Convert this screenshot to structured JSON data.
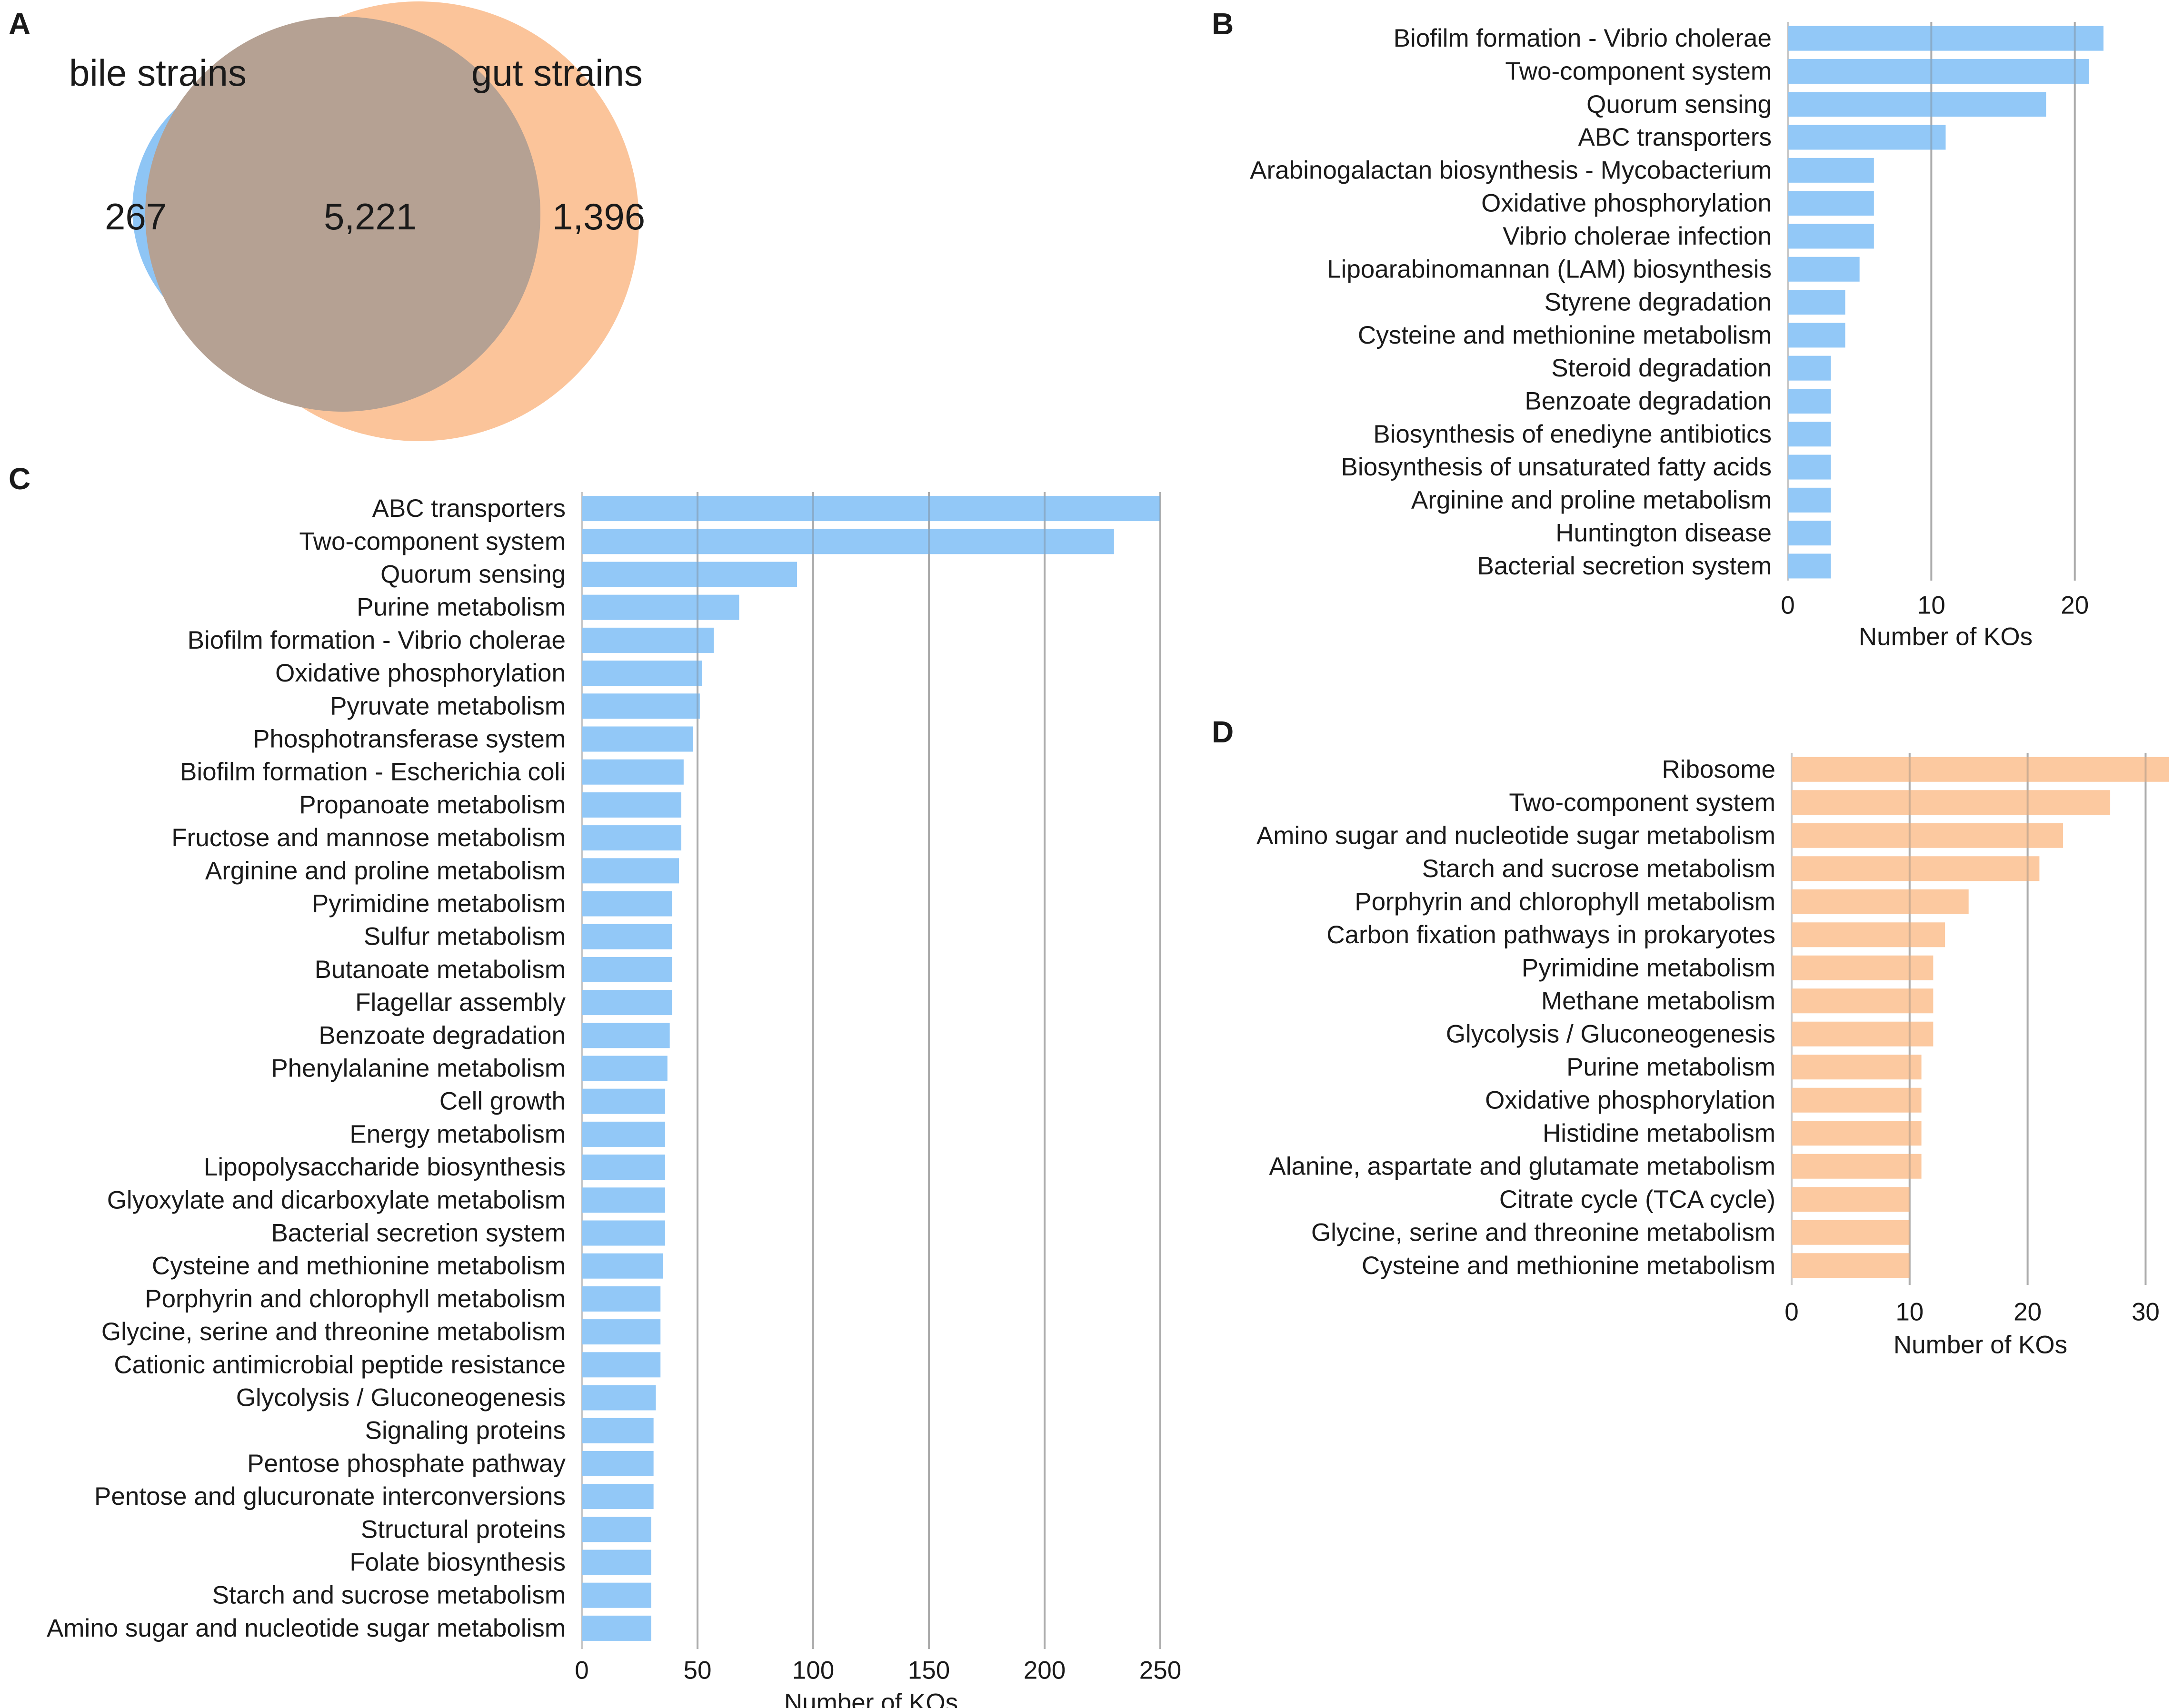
{
  "panels": {
    "a": "A",
    "b": "B",
    "c": "C",
    "d": "D"
  },
  "venn": {
    "left_label": "bile strains",
    "right_label": "gut strains",
    "left_only": "267",
    "overlap": "5,221",
    "right_only": "1,396",
    "colors": {
      "left": "#8ec5f5",
      "right": "#fbc49a",
      "overlap": "#b5a193"
    }
  },
  "chart_data": [
    {
      "panel": "B",
      "type": "bar",
      "orientation": "horizontal",
      "color": "#92c8f7",
      "categories": [
        "Biofilm formation - Vibrio cholerae",
        "Two-component system",
        "Quorum sensing",
        "ABC transporters",
        "Arabinogalactan biosynthesis - Mycobacterium",
        "Oxidative phosphorylation",
        "Vibrio cholerae infection",
        "Lipoarabinomannan (LAM) biosynthesis",
        "Styrene degradation",
        "Cysteine and methionine metabolism",
        "Steroid degradation",
        "Benzoate degradation",
        "Biosynthesis of enediyne antibiotics",
        "Biosynthesis of unsaturated fatty acids",
        "Arginine and proline metabolism",
        "Huntington disease",
        "Bacterial secretion system"
      ],
      "values": [
        22,
        21,
        18,
        11,
        6,
        6,
        6,
        5,
        4,
        4,
        3,
        3,
        3,
        3,
        3,
        3,
        3
      ],
      "xlim": [
        0,
        22
      ],
      "xticks": [
        0,
        10,
        20
      ],
      "xlabel": "Number of KOs",
      "grid": true
    },
    {
      "panel": "C",
      "type": "bar",
      "orientation": "horizontal",
      "color": "#92c8f7",
      "categories": [
        "ABC transporters",
        "Two-component system",
        "Quorum sensing",
        "Purine metabolism",
        "Biofilm formation - Vibrio cholerae",
        "Oxidative phosphorylation",
        "Pyruvate metabolism",
        "Phosphotransferase system",
        "Biofilm formation - Escherichia coli",
        "Propanoate metabolism",
        "Fructose and mannose metabolism",
        "Arginine and proline metabolism",
        "Pyrimidine metabolism",
        "Sulfur metabolism",
        "Butanoate metabolism",
        "Flagellar assembly",
        "Benzoate degradation",
        "Phenylalanine metabolism",
        "Cell growth",
        "Energy metabolism",
        "Lipopolysaccharide biosynthesis",
        "Glyoxylate and dicarboxylate metabolism",
        "Bacterial secretion system",
        "Cysteine and methionine metabolism",
        "Porphyrin and chlorophyll metabolism",
        "Glycine, serine and threonine metabolism",
        "Cationic antimicrobial peptide resistance",
        "Glycolysis / Gluconeogenesis",
        "Signaling proteins",
        "Pentose phosphate pathway",
        "Pentose and glucuronate interconversions",
        "Structural proteins",
        "Folate biosynthesis",
        "Starch and sucrose metabolism",
        "Amino sugar and nucleotide sugar metabolism"
      ],
      "values": [
        250,
        230,
        93,
        68,
        57,
        52,
        51,
        48,
        44,
        43,
        43,
        42,
        39,
        39,
        39,
        39,
        38,
        37,
        36,
        36,
        36,
        36,
        36,
        35,
        34,
        34,
        34,
        32,
        31,
        31,
        31,
        30,
        30,
        30,
        30
      ],
      "xlim": [
        0,
        250
      ],
      "xticks": [
        0,
        50,
        100,
        150,
        200,
        250
      ],
      "xlabel": "Number of KOs",
      "grid": true
    },
    {
      "panel": "D",
      "type": "bar",
      "orientation": "horizontal",
      "color": "#fcc9a0",
      "categories": [
        "Ribosome",
        "Two-component system",
        "Amino sugar and nucleotide sugar metabolism",
        "Starch and sucrose metabolism",
        "Porphyrin and chlorophyll metabolism",
        "Carbon fixation pathways in prokaryotes",
        "Pyrimidine metabolism",
        "Methane metabolism",
        "Glycolysis / Gluconeogenesis",
        "Purine metabolism",
        "Oxidative phosphorylation",
        "Histidine metabolism",
        "Alanine, aspartate and glutamate metabolism",
        "Citrate cycle (TCA cycle)",
        "Glycine, serine and threonine metabolism",
        "Cysteine and methionine metabolism"
      ],
      "values": [
        32,
        27,
        23,
        21,
        15,
        13,
        12,
        12,
        12,
        11,
        11,
        11,
        11,
        10,
        10,
        10
      ],
      "xlim": [
        0,
        32
      ],
      "xticks": [
        0,
        10,
        20,
        30
      ],
      "xlabel": "Number of KOs",
      "grid": true
    }
  ]
}
